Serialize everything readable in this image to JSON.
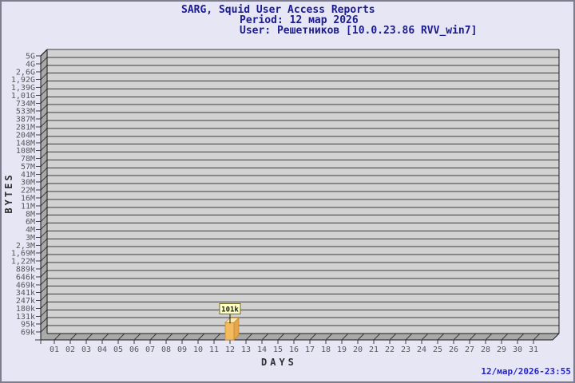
{
  "header": {
    "title": "SARG, Squid User Access Reports",
    "period": "Period: 12 мар 2026",
    "user": "User: Решетников [10.0.23.86 RVV_win7]"
  },
  "footer": {
    "timestamp": "12/мар/2026-23:55"
  },
  "chart_data": {
    "type": "bar",
    "title": "SARG, Squid User Access Reports",
    "subtitle_period": "Period: 12 мар 2026",
    "subtitle_user": "User: Решетников [10.0.23.86 RVV_win7]",
    "xlabel": "DAYS",
    "ylabel": "BYTES",
    "scale": "log",
    "grid": "horizontal",
    "x_categories": [
      "01",
      "02",
      "03",
      "04",
      "05",
      "06",
      "07",
      "08",
      "09",
      "10",
      "11",
      "12",
      "13",
      "14",
      "15",
      "16",
      "17",
      "18",
      "19",
      "20",
      "21",
      "22",
      "23",
      "24",
      "25",
      "26",
      "27",
      "28",
      "29",
      "30",
      "31"
    ],
    "y_tick_labels": [
      "5G",
      "4G",
      "2,6G",
      "1,92G",
      "1,39G",
      "1,01G",
      "734M",
      "533M",
      "387M",
      "281M",
      "204M",
      "148M",
      "108M",
      "78M",
      "57M",
      "41M",
      "30M",
      "22M",
      "16M",
      "11M",
      "8M",
      "6M",
      "4M",
      "3M",
      "2,3M",
      "1,69M",
      "1,22M",
      "889k",
      "646k",
      "469k",
      "341k",
      "247k",
      "180k",
      "131k",
      "95k",
      "69k"
    ],
    "y_tick_values": [
      5000000000,
      4000000000,
      2600000000,
      1920000000,
      1390000000,
      1010000000,
      734000000,
      533000000,
      387000000,
      281000000,
      204000000,
      148000000,
      108000000,
      78000000,
      57000000,
      41000000,
      30000000,
      22000000,
      16000000,
      11000000,
      8000000,
      6000000,
      4000000,
      3000000,
      2300000,
      1690000,
      1220000,
      889000,
      646000,
      469000,
      341000,
      247000,
      180000,
      131000,
      95000,
      69000
    ],
    "bars": [
      {
        "day": "12",
        "value": 101000,
        "label": "101k"
      }
    ]
  },
  "colors": {
    "background": "#e6e6f4",
    "plot_bg": "#d2d2d2",
    "wall": "#a9a9a9",
    "grid": "#3c3c3c",
    "frame": "#1a1a1a",
    "title_text": "#1c1c8f",
    "tick_text": "#57575b",
    "axis_text": "#303034",
    "timestamp_text": "#2626c9",
    "bar_front": "#f3bb60",
    "bar_side": "#e6a44d",
    "bar_top": "#f8ecb4",
    "bar_edge": "#c08a30",
    "value_box_bg": "#ffffc9",
    "value_box_border": "#6e6e1e",
    "value_box_text": "#1e1e00"
  }
}
